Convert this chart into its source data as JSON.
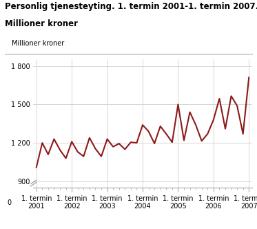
{
  "title_line1": "Personlig tjenesteyting. 1. termin 2001-1. termin 2007.",
  "title_line2": "Millioner kroner",
  "ylabel": "Millioner kroner",
  "line_color": "#8B1A1A",
  "background_color": "#ffffff",
  "grid_color": "#d0d0d0",
  "spine_color": "#aaaaaa",
  "ylim_main": [
    850,
    1850
  ],
  "yticks": [
    900,
    1200,
    1500,
    1800
  ],
  "ytick_labels": [
    "900",
    "1 200",
    "1 500",
    "1 800"
  ],
  "values": [
    1010,
    1200,
    1110,
    1230,
    1145,
    1080,
    1210,
    1130,
    1095,
    1240,
    1155,
    1095,
    1230,
    1170,
    1195,
    1150,
    1205,
    1200,
    1340,
    1290,
    1195,
    1330,
    1270,
    1205,
    1500,
    1220,
    1440,
    1340,
    1215,
    1270,
    1380,
    1545,
    1310,
    1565,
    1490,
    1270,
    1710
  ],
  "xtick_positions": [
    0,
    6,
    12,
    18,
    24,
    30,
    36
  ],
  "xtick_labels": [
    "1. termin\n2001",
    "1. termin\n2002",
    "1. termin\n2003",
    "1. termin\n2004",
    "1. termin\n2005",
    "1. termin\n2006",
    "1. termin\n2007"
  ],
  "line_width": 1.5,
  "title_fontsize": 8.5,
  "tick_fontsize": 7,
  "ylabel_fontsize": 7,
  "minor_xtick_count": 5
}
